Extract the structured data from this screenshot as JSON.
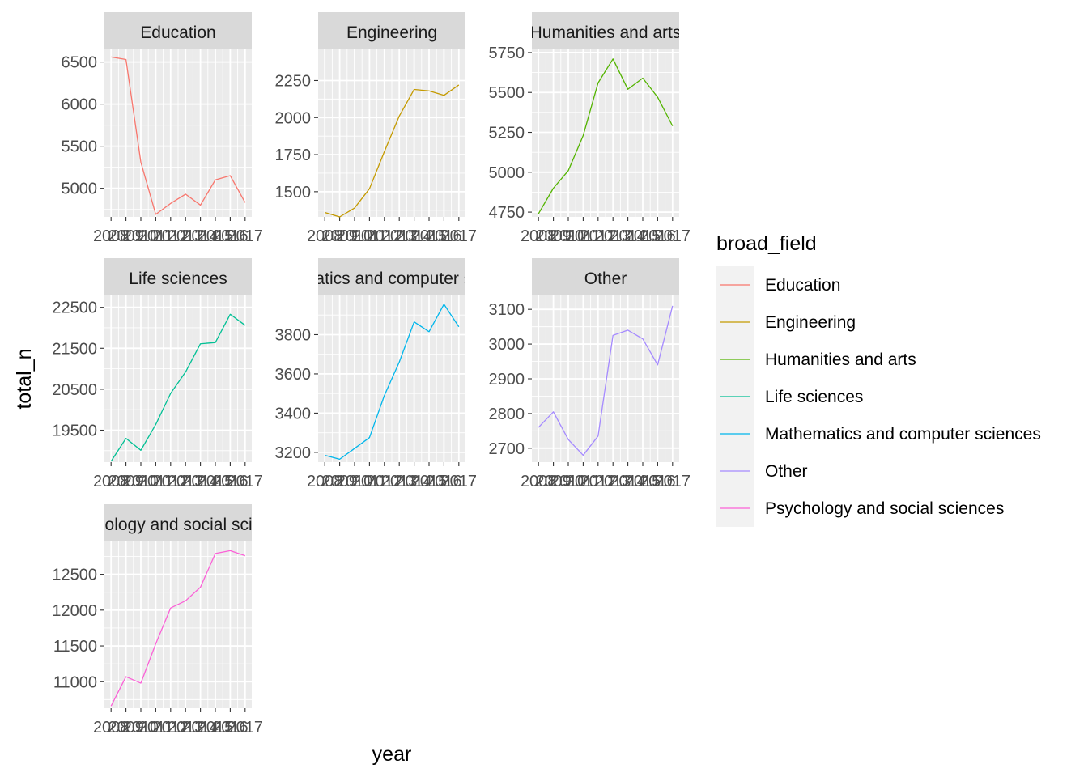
{
  "chart_data": {
    "type": "line",
    "facet_by": "broad_field",
    "xlabel": "year",
    "ylabel": "total_n",
    "x": [
      2008,
      2009,
      2010,
      2011,
      2012,
      2013,
      2014,
      2015,
      2016,
      2017
    ],
    "x_tick_labels": [
      "2008",
      "2009",
      "2010",
      "2011",
      "2012",
      "2013",
      "2014",
      "2015",
      "2016",
      "2017"
    ],
    "legend": {
      "title": "broad_field",
      "position": "right"
    },
    "grid": true,
    "panels": [
      {
        "name": "Education",
        "color": "#F8766D",
        "ylim": [
          4660,
          6650
        ],
        "y_ticks": [
          5000,
          5500,
          6000,
          6500
        ],
        "values": [
          6560,
          6530,
          5310,
          4690,
          4820,
          4930,
          4800,
          5100,
          5150,
          4830
        ]
      },
      {
        "name": "Engineering",
        "color": "#C49A00",
        "ylim": [
          1330,
          2460
        ],
        "y_ticks": [
          1500,
          1750,
          2000,
          2250
        ],
        "values": [
          1360,
          1330,
          1390,
          1520,
          1770,
          2010,
          2190,
          2180,
          2150,
          2220
        ]
      },
      {
        "name": "Humanities and arts",
        "color": "#53B400",
        "ylim": [
          4720,
          5770
        ],
        "y_ticks": [
          4750,
          5000,
          5250,
          5500,
          5750
        ],
        "values": [
          4740,
          4900,
          5010,
          5230,
          5560,
          5710,
          5520,
          5590,
          5470,
          5290
        ]
      },
      {
        "name": "Life sciences",
        "color": "#00C094",
        "ylim": [
          18720,
          22790
        ],
        "y_ticks": [
          19500,
          20500,
          21500,
          22500
        ],
        "values": [
          18740,
          19300,
          19010,
          19640,
          20400,
          20920,
          21610,
          21640,
          22330,
          22060
        ]
      },
      {
        "name": "Mathematics and computer sciences",
        "color": "#00B6EB",
        "ylim": [
          3150,
          4000
        ],
        "y_ticks": [
          3200,
          3400,
          3600,
          3800
        ],
        "values": [
          3185,
          3165,
          3220,
          3275,
          3490,
          3660,
          3865,
          3815,
          3955,
          3840
        ]
      },
      {
        "name": "Other",
        "color": "#A58AFF",
        "ylim": [
          2660,
          3140
        ],
        "y_ticks": [
          2700,
          2800,
          2900,
          3000,
          3100
        ],
        "values": [
          2760,
          2805,
          2725,
          2680,
          2735,
          3025,
          3040,
          3015,
          2940,
          3110
        ]
      },
      {
        "name": "Psychology and social sciences",
        "color": "#FB61D7",
        "ylim": [
          10630,
          12970
        ],
        "y_ticks": [
          11000,
          11500,
          12000,
          12500
        ],
        "values": [
          10660,
          11070,
          10980,
          11530,
          12030,
          12130,
          12320,
          12790,
          12830,
          12760
        ]
      }
    ]
  }
}
